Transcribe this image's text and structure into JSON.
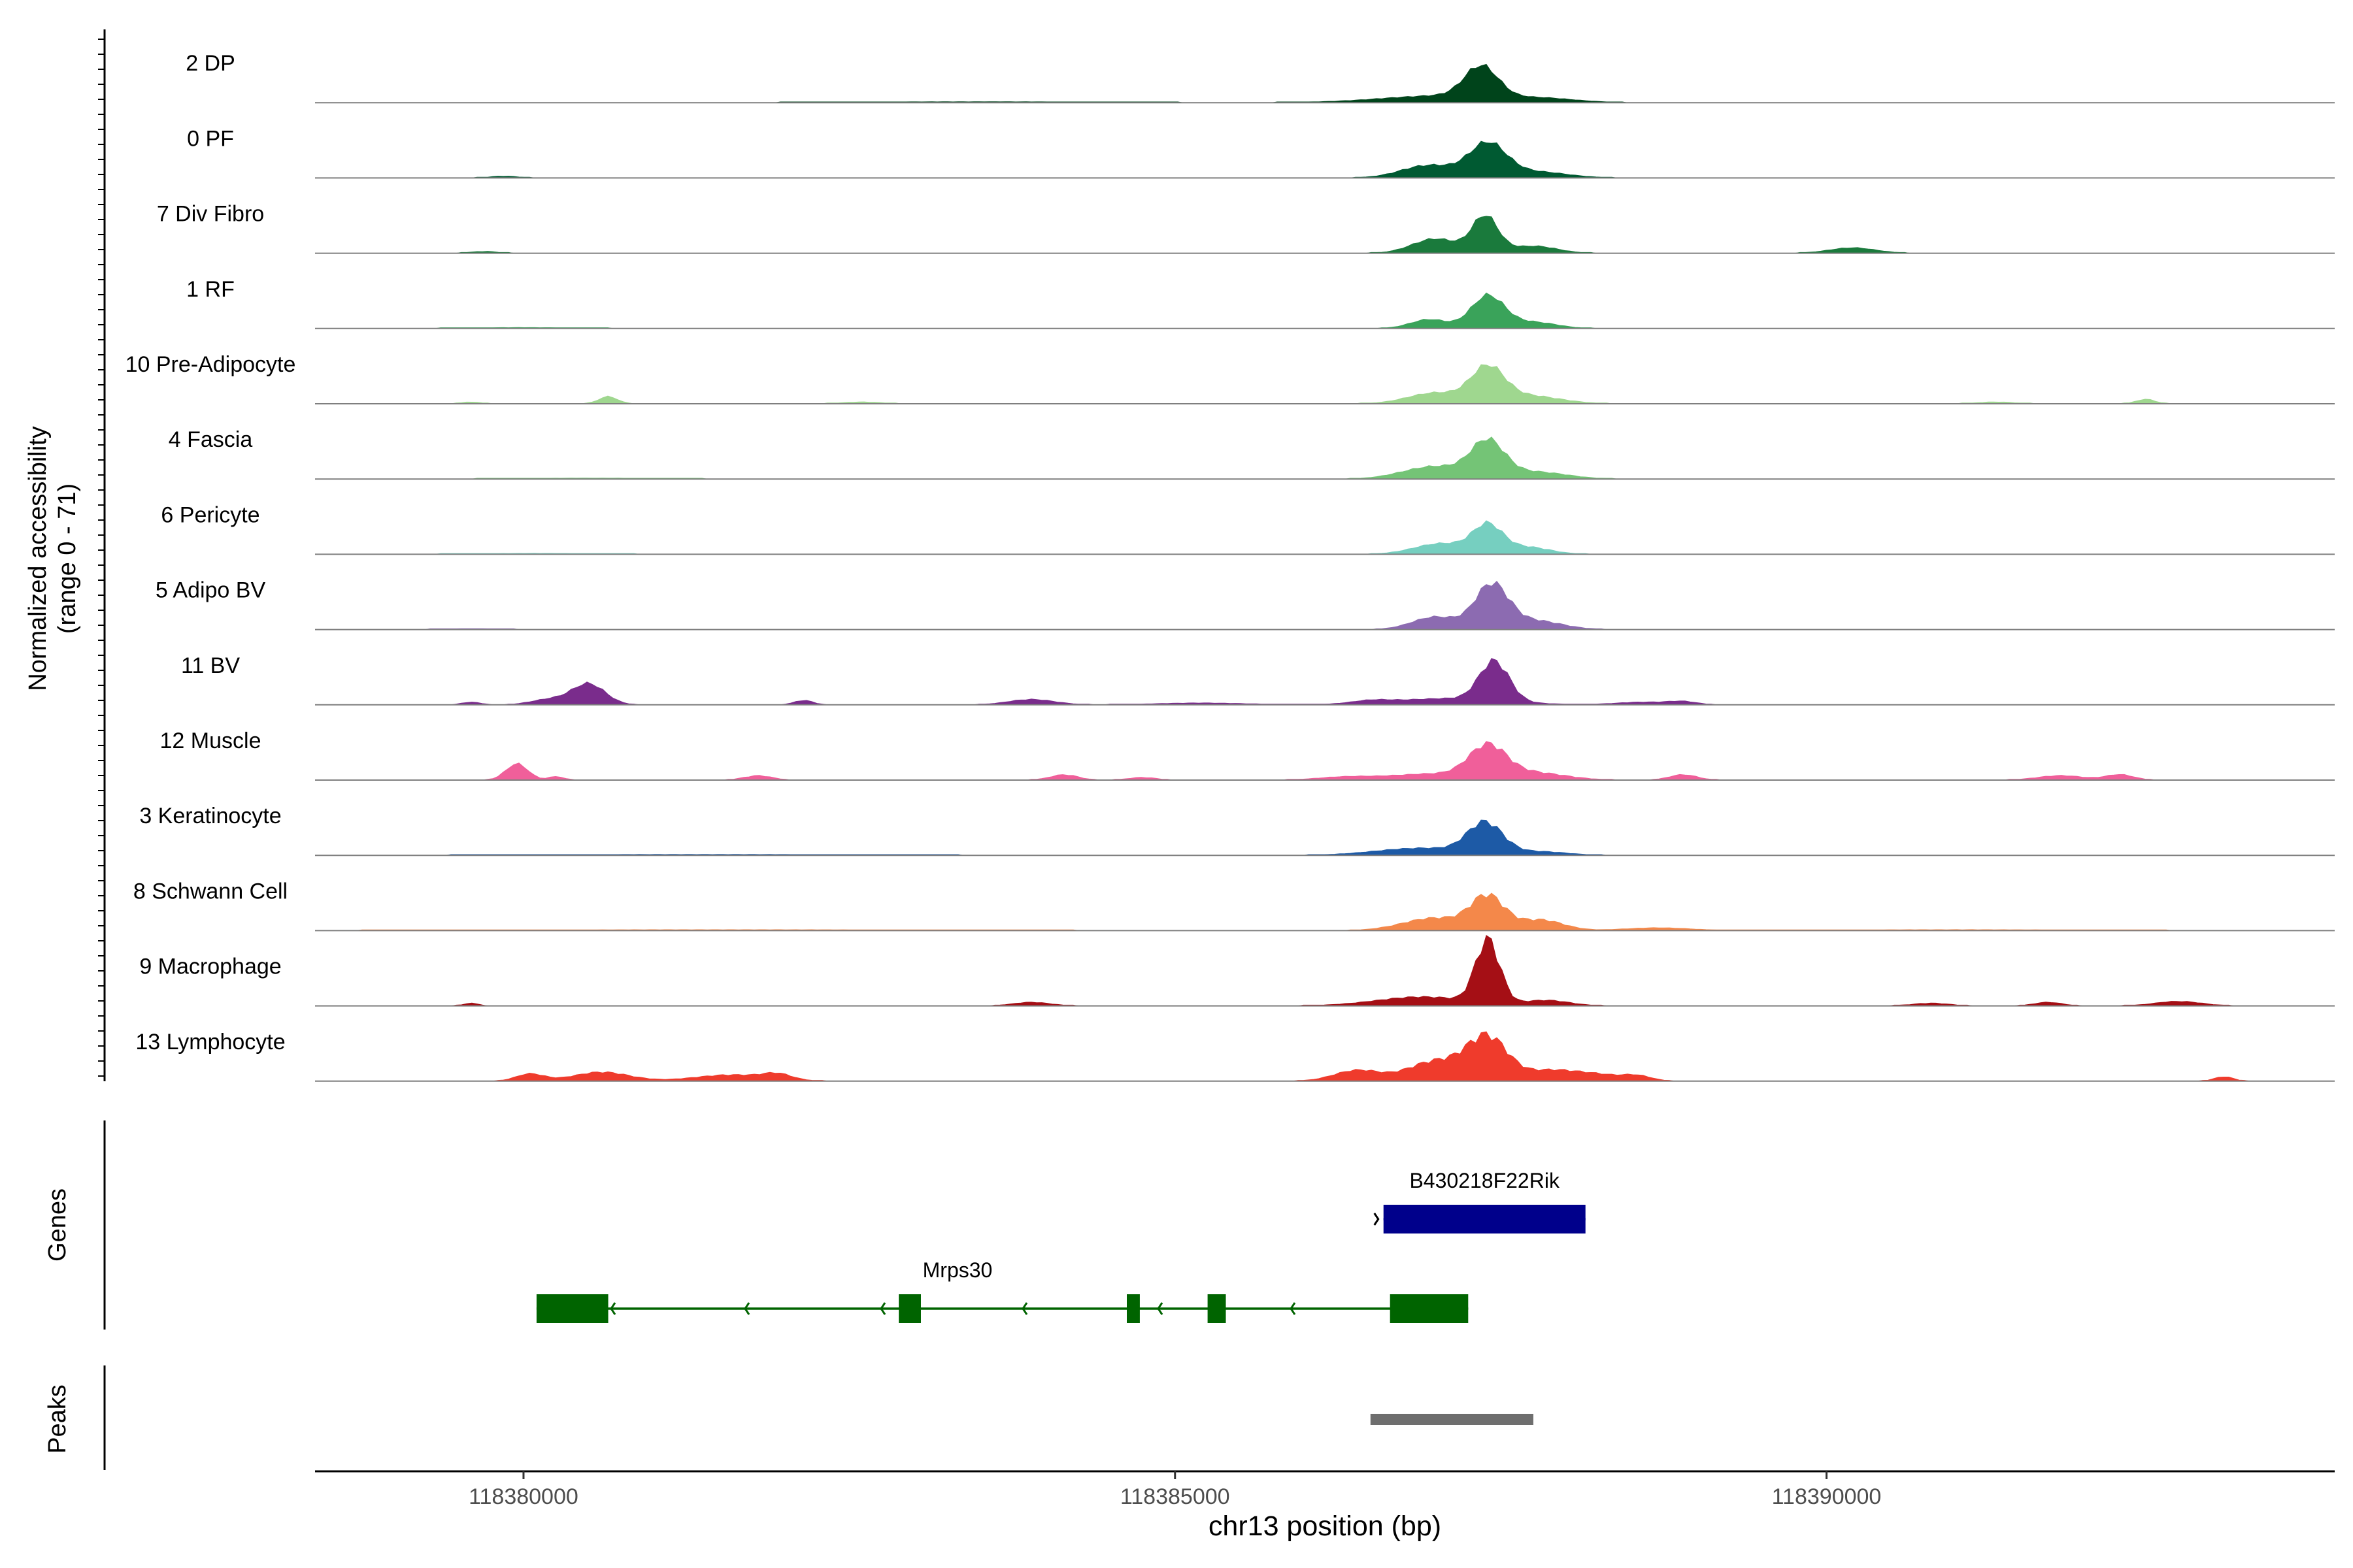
{
  "chart_data": {
    "type": "area",
    "subtype": "genome-coverage-track",
    "xlabel": "chr13 position (bp)",
    "xlim": [
      118378400,
      118393900
    ],
    "x_ticks": [
      118380000,
      118385000,
      118390000
    ],
    "ylabel_line1": "Normalized accessibility",
    "ylabel_line2": "(range 0 - 71)",
    "ylim": [
      0,
      71
    ],
    "tracks": [
      {
        "name": "2 DP",
        "color": "#00441b",
        "peaks": [
          [
            118387350,
            34,
            180
          ],
          [
            118387100,
            8,
            700
          ],
          [
            118387850,
            3,
            350
          ],
          [
            118383500,
            1,
            1400
          ]
        ]
      },
      {
        "name": "0 PF",
        "color": "#005a32",
        "peaks": [
          [
            118387400,
            36,
            200
          ],
          [
            118386950,
            14,
            300
          ],
          [
            118387750,
            7,
            350
          ],
          [
            118379850,
            2,
            150
          ]
        ]
      },
      {
        "name": "7 Div Fibro",
        "color": "#1a7a3c",
        "peaks": [
          [
            118387380,
            40,
            140
          ],
          [
            118387000,
            16,
            250
          ],
          [
            118387750,
            8,
            250
          ],
          [
            118390200,
            6,
            250
          ],
          [
            118379700,
            2,
            150
          ]
        ]
      },
      {
        "name": "1 RF",
        "color": "#3aa35a",
        "peaks": [
          [
            118387400,
            36,
            180
          ],
          [
            118386950,
            10,
            200
          ],
          [
            118387750,
            7,
            250
          ],
          [
            118380000,
            1,
            600
          ]
        ]
      },
      {
        "name": "10 Pre-Adipocyte",
        "color": "#9fd78f",
        "peaks": [
          [
            118387400,
            37,
            180
          ],
          [
            118387000,
            12,
            300
          ],
          [
            118387700,
            9,
            350
          ],
          [
            118380650,
            8,
            100
          ],
          [
            118392450,
            5,
            100
          ],
          [
            118379600,
            2,
            100
          ],
          [
            118382600,
            2,
            200
          ],
          [
            118391300,
            2,
            200
          ]
        ]
      },
      {
        "name": "4 Fascia",
        "color": "#74c476",
        "peaks": [
          [
            118387400,
            38,
            180
          ],
          [
            118387000,
            14,
            350
          ],
          [
            118387750,
            8,
            350
          ],
          [
            118380500,
            1,
            800
          ]
        ]
      },
      {
        "name": "6 Pericyte",
        "color": "#76cfc0",
        "peaks": [
          [
            118387400,
            30,
            160
          ],
          [
            118387050,
            12,
            300
          ],
          [
            118387700,
            8,
            250
          ],
          [
            118380100,
            1,
            700
          ]
        ]
      },
      {
        "name": "5 Adipo BV",
        "color": "#8c6bb1",
        "peaks": [
          [
            118387430,
            48,
            180
          ],
          [
            118387000,
            14,
            250
          ],
          [
            118387750,
            10,
            300
          ],
          [
            118379600,
            1,
            300
          ]
        ]
      },
      {
        "name": "11 BV",
        "color": "#7a2c8c",
        "peaks": [
          [
            118387450,
            44,
            160
          ],
          [
            118387100,
            7,
            600
          ],
          [
            118380500,
            23,
            180
          ],
          [
            118380200,
            6,
            200
          ],
          [
            118379600,
            3,
            100
          ],
          [
            118382150,
            5,
            100
          ],
          [
            118383900,
            6,
            250
          ],
          [
            118386500,
            3,
            200
          ],
          [
            118385200,
            2,
            500
          ],
          [
            118388600,
            3,
            300
          ],
          [
            118388900,
            3,
            150
          ]
        ]
      },
      {
        "name": "12 Muscle",
        "color": "#f05f9a",
        "peaks": [
          [
            118387400,
            34,
            200
          ],
          [
            118387000,
            7,
            500
          ],
          [
            118387750,
            8,
            350
          ],
          [
            118379950,
            18,
            120
          ],
          [
            118380250,
            4,
            80
          ],
          [
            118381800,
            5,
            150
          ],
          [
            118384150,
            6,
            150
          ],
          [
            118384750,
            3,
            150
          ],
          [
            118386300,
            3,
            300
          ],
          [
            118388900,
            6,
            150
          ],
          [
            118391800,
            5,
            250
          ],
          [
            118392250,
            6,
            150
          ]
        ]
      },
      {
        "name": "3 Keratinocyte",
        "color": "#1d5aa6",
        "peaks": [
          [
            118387380,
            34,
            190
          ],
          [
            118386900,
            8,
            500
          ],
          [
            118387800,
            4,
            300
          ],
          [
            118381400,
            1,
            1800
          ]
        ]
      },
      {
        "name": "8 Schwann Cell",
        "color": "#f4884a",
        "peaks": [
          [
            118387400,
            36,
            180
          ],
          [
            118387000,
            14,
            350
          ],
          [
            118387800,
            12,
            250
          ],
          [
            118388700,
            3,
            350
          ],
          [
            118381500,
            1,
            2500
          ],
          [
            118391000,
            1,
            1500
          ]
        ]
      },
      {
        "name": "9 Macrophage",
        "color": "#a50f15",
        "peaks": [
          [
            118387400,
            71,
            130
          ],
          [
            118386900,
            10,
            500
          ],
          [
            118387850,
            6,
            250
          ],
          [
            118383900,
            4,
            200
          ],
          [
            118391700,
            4,
            150
          ],
          [
            118392700,
            5,
            250
          ],
          [
            118390800,
            3,
            200
          ],
          [
            118379600,
            3,
            80
          ]
        ]
      },
      {
        "name": "13 Lymphocyte",
        "color": "#ef3b2c",
        "peaks": [
          [
            118387400,
            48,
            220
          ],
          [
            118387000,
            22,
            300
          ],
          [
            118386400,
            12,
            250
          ],
          [
            118387850,
            10,
            250
          ],
          [
            118388200,
            8,
            300
          ],
          [
            118388550,
            5,
            150
          ],
          [
            118380050,
            8,
            150
          ],
          [
            118380600,
            10,
            300
          ],
          [
            118381600,
            7,
            400
          ],
          [
            118381950,
            6,
            150
          ],
          [
            118393050,
            5,
            100
          ]
        ]
      }
    ],
    "genes": [
      {
        "name": "B430218F22Rik",
        "strand": "+",
        "start": 118386600,
        "end": 118388150,
        "color": "#00008b",
        "row": 1,
        "exons": [
          [
            118386600,
            118388150
          ]
        ]
      },
      {
        "name": "Mrps30",
        "strand": "-",
        "start": 118380100,
        "end": 118387250,
        "color": "#006400",
        "row": 2,
        "exons": [
          [
            118380100,
            118380650
          ],
          [
            118382880,
            118383050
          ],
          [
            118384630,
            118384730
          ],
          [
            118385250,
            118385390
          ],
          [
            118386650,
            118387250
          ]
        ]
      }
    ],
    "peaks": [
      [
        118386500,
        118387750
      ]
    ],
    "panel_labels": {
      "genes": "Genes",
      "peaks": "Peaks"
    }
  }
}
